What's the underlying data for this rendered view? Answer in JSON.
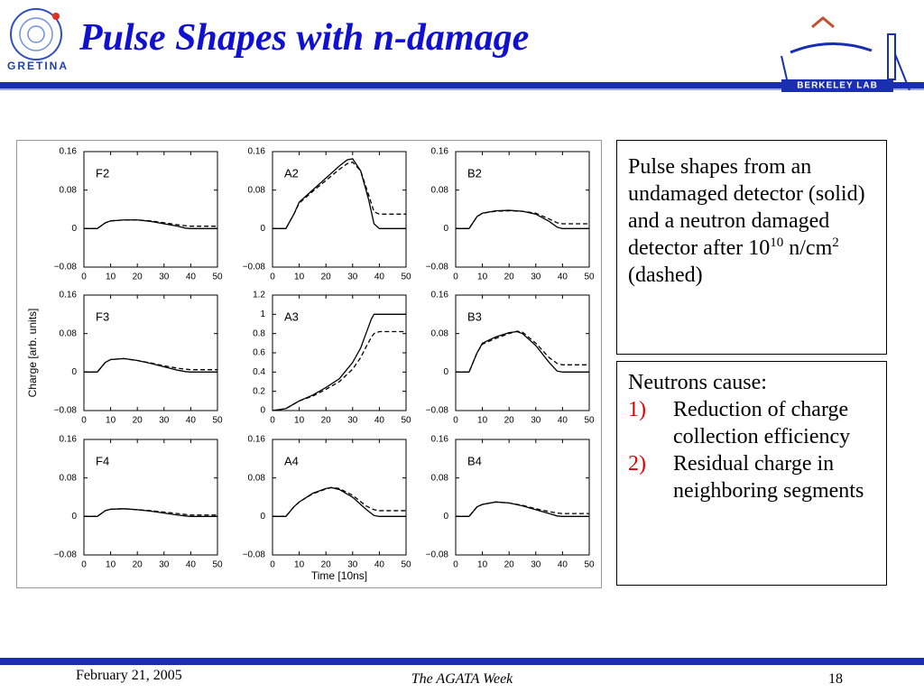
{
  "slide": {
    "title": "Pulse Shapes with n-damage",
    "logo_left": "GRETINA",
    "logo_right": "BERKELEY LAB",
    "description": {
      "text": "Pulse shapes from an undamaged detector (solid) and a neutron damaged detector after 10",
      "exponent": "10",
      "unit": "n/cm",
      "unit_exponent": "2",
      "suffix": "(dashed)"
    },
    "causes": {
      "heading": "Neutrons cause:",
      "items": [
        {
          "marker": "1)",
          "text": "Reduction of charge collection efficiency"
        },
        {
          "marker": "2)",
          "text": "Residual charge in neighboring segments"
        }
      ]
    },
    "footer": {
      "date": "February 21, 2005",
      "event": "The AGATA Week",
      "page": "18"
    }
  },
  "chart_data": [
    {
      "type": "line",
      "title": "F2",
      "x": [
        0,
        5,
        8,
        10,
        15,
        20,
        25,
        30,
        35,
        38,
        40,
        50
      ],
      "xlim": [
        0,
        50
      ],
      "xticks": [
        0,
        10,
        20,
        30,
        40,
        50
      ],
      "ylim": [
        -0.08,
        0.16
      ],
      "yticks": [
        {
          "value": -0.08,
          "label": "−0.08"
        },
        0,
        0.08,
        0.16
      ],
      "series": [
        {
          "color": "#000",
          "style": "solid",
          "values": [
            0,
            0,
            0.012,
            0.016,
            0.018,
            0.018,
            0.015,
            0.01,
            0.005,
            0.001,
            0,
            0
          ]
        },
        {
          "color": "#000",
          "style": "dashed",
          "values": [
            0,
            0,
            0.012,
            0.016,
            0.018,
            0.018,
            0.016,
            0.012,
            0.008,
            0.006,
            0.005,
            0.005
          ]
        }
      ]
    },
    {
      "type": "line",
      "title": "A2",
      "x": [
        0,
        5,
        8,
        10,
        15,
        20,
        25,
        28,
        30,
        33,
        36,
        38,
        40,
        50
      ],
      "xlim": [
        0,
        50
      ],
      "xticks": [
        0,
        10,
        20,
        30,
        40,
        50
      ],
      "ylim": [
        -0.08,
        0.16
      ],
      "yticks": [
        {
          "value": -0.08,
          "label": "−0.08"
        },
        0,
        0.08,
        0.16
      ],
      "series": [
        {
          "color": "#000",
          "style": "solid",
          "values": [
            0,
            0,
            0.03,
            0.055,
            0.08,
            0.105,
            0.13,
            0.143,
            0.145,
            0.12,
            0.06,
            0.01,
            0,
            0
          ]
        },
        {
          "color": "#000",
          "style": "dashed",
          "values": [
            0,
            0,
            0.03,
            0.053,
            0.077,
            0.1,
            0.123,
            0.135,
            0.138,
            0.12,
            0.07,
            0.035,
            0.03,
            0.03
          ]
        }
      ]
    },
    {
      "type": "line",
      "title": "B2",
      "x": [
        0,
        5,
        8,
        10,
        15,
        20,
        25,
        30,
        35,
        38,
        40,
        50
      ],
      "xlim": [
        0,
        50
      ],
      "xticks": [
        0,
        10,
        20,
        30,
        40,
        50
      ],
      "ylim": [
        -0.08,
        0.16
      ],
      "yticks": [
        {
          "value": -0.08,
          "label": "−0.08"
        },
        0,
        0.08,
        0.16
      ],
      "series": [
        {
          "color": "#000",
          "style": "solid",
          "values": [
            0,
            0,
            0.025,
            0.032,
            0.037,
            0.038,
            0.036,
            0.03,
            0.015,
            0.003,
            0,
            0
          ]
        },
        {
          "color": "#000",
          "style": "dashed",
          "values": [
            0,
            0,
            0.025,
            0.032,
            0.036,
            0.037,
            0.036,
            0.032,
            0.02,
            0.012,
            0.01,
            0.01
          ]
        }
      ]
    },
    {
      "type": "line",
      "title": "F3",
      "ylabel": "Charge [arb. units]",
      "x": [
        0,
        5,
        8,
        10,
        15,
        20,
        25,
        30,
        35,
        38,
        40,
        50
      ],
      "xlim": [
        0,
        50
      ],
      "xticks": [
        0,
        10,
        20,
        30,
        40,
        50
      ],
      "ylim": [
        -0.08,
        0.16
      ],
      "yticks": [
        {
          "value": -0.08,
          "label": "−0.08"
        },
        0,
        0.08,
        0.16
      ],
      "series": [
        {
          "color": "#000",
          "style": "solid",
          "values": [
            0,
            0,
            0.02,
            0.026,
            0.028,
            0.024,
            0.018,
            0.011,
            0.004,
            0.001,
            0,
            0
          ]
        },
        {
          "color": "#000",
          "style": "dashed",
          "values": [
            0,
            0,
            0.02,
            0.026,
            0.028,
            0.024,
            0.019,
            0.013,
            0.008,
            0.006,
            0.005,
            0.005
          ]
        }
      ]
    },
    {
      "type": "line",
      "title": "A3",
      "x": [
        0,
        5,
        10,
        15,
        20,
        25,
        30,
        33,
        35,
        37,
        38,
        40,
        45,
        50
      ],
      "xlim": [
        0,
        50
      ],
      "xticks": [
        0,
        10,
        20,
        30,
        40,
        50
      ],
      "ylim": [
        0,
        1.2
      ],
      "yticks": [
        0,
        0.2,
        0.4,
        0.6,
        0.8,
        1,
        1.2
      ],
      "series": [
        {
          "color": "#000",
          "style": "solid",
          "values": [
            0,
            0.02,
            0.1,
            0.16,
            0.24,
            0.33,
            0.5,
            0.65,
            0.8,
            0.95,
            1,
            1,
            1,
            1
          ]
        },
        {
          "color": "#000",
          "style": "dashed",
          "values": [
            0,
            0.02,
            0.1,
            0.15,
            0.22,
            0.3,
            0.43,
            0.55,
            0.66,
            0.76,
            0.8,
            0.82,
            0.82,
            0.82
          ]
        }
      ]
    },
    {
      "type": "line",
      "title": "B3",
      "x": [
        0,
        5,
        8,
        10,
        15,
        20,
        23,
        25,
        30,
        35,
        38,
        40,
        50
      ],
      "xlim": [
        0,
        50
      ],
      "xticks": [
        0,
        10,
        20,
        30,
        40,
        50
      ],
      "ylim": [
        -0.08,
        0.16
      ],
      "yticks": [
        {
          "value": -0.08,
          "label": "−0.08"
        },
        0,
        0.08,
        0.16
      ],
      "series": [
        {
          "color": "#000",
          "style": "solid",
          "values": [
            0,
            0,
            0.04,
            0.06,
            0.073,
            0.082,
            0.084,
            0.08,
            0.055,
            0.02,
            0.002,
            0,
            0
          ]
        },
        {
          "color": "#000",
          "style": "dashed",
          "values": [
            0,
            0,
            0.04,
            0.058,
            0.07,
            0.08,
            0.085,
            0.083,
            0.06,
            0.03,
            0.018,
            0.015,
            0.015
          ]
        }
      ]
    },
    {
      "type": "line",
      "title": "F4",
      "x": [
        0,
        5,
        8,
        10,
        15,
        20,
        25,
        30,
        35,
        38,
        40,
        50
      ],
      "xlim": [
        0,
        50
      ],
      "xticks": [
        0,
        10,
        20,
        30,
        40,
        50
      ],
      "ylim": [
        -0.08,
        0.16
      ],
      "yticks": [
        {
          "value": -0.08,
          "label": "−0.08"
        },
        0,
        0.08,
        0.16
      ],
      "series": [
        {
          "color": "#000",
          "style": "solid",
          "values": [
            0,
            0,
            0.012,
            0.015,
            0.016,
            0.014,
            0.011,
            0.007,
            0.003,
            0.001,
            0,
            0
          ]
        },
        {
          "color": "#000",
          "style": "dashed",
          "values": [
            0,
            0,
            0.012,
            0.015,
            0.016,
            0.014,
            0.012,
            0.009,
            0.006,
            0.004,
            0.003,
            0.003
          ]
        }
      ]
    },
    {
      "type": "line",
      "title": "A4",
      "xlabel": "Time [10ns]",
      "x": [
        0,
        5,
        8,
        10,
        15,
        20,
        22,
        25,
        30,
        35,
        38,
        40,
        50
      ],
      "xlim": [
        0,
        50
      ],
      "xticks": [
        0,
        10,
        20,
        30,
        40,
        50
      ],
      "ylim": [
        -0.08,
        0.16
      ],
      "yticks": [
        {
          "value": -0.08,
          "label": "−0.08"
        },
        0,
        0.08,
        0.16
      ],
      "series": [
        {
          "color": "#000",
          "style": "solid",
          "values": [
            0,
            0,
            0.02,
            0.03,
            0.048,
            0.058,
            0.06,
            0.056,
            0.04,
            0.015,
            0.002,
            0,
            0
          ]
        },
        {
          "color": "#000",
          "style": "dashed",
          "values": [
            0,
            0,
            0.02,
            0.03,
            0.047,
            0.057,
            0.06,
            0.058,
            0.044,
            0.022,
            0.014,
            0.012,
            0.012
          ]
        }
      ]
    },
    {
      "type": "line",
      "title": "B4",
      "x": [
        0,
        5,
        8,
        10,
        15,
        20,
        25,
        30,
        35,
        38,
        40,
        50
      ],
      "xlim": [
        0,
        50
      ],
      "xticks": [
        0,
        10,
        20,
        30,
        40,
        50
      ],
      "ylim": [
        -0.08,
        0.16
      ],
      "yticks": [
        {
          "value": -0.08,
          "label": "−0.08"
        },
        0,
        0.08,
        0.16
      ],
      "series": [
        {
          "color": "#000",
          "style": "solid",
          "values": [
            0,
            0,
            0.02,
            0.025,
            0.03,
            0.028,
            0.022,
            0.014,
            0.006,
            0.001,
            0,
            0
          ]
        },
        {
          "color": "#000",
          "style": "dashed",
          "values": [
            0,
            0,
            0.02,
            0.025,
            0.03,
            0.028,
            0.023,
            0.016,
            0.01,
            0.007,
            0.006,
            0.006
          ]
        }
      ]
    }
  ]
}
